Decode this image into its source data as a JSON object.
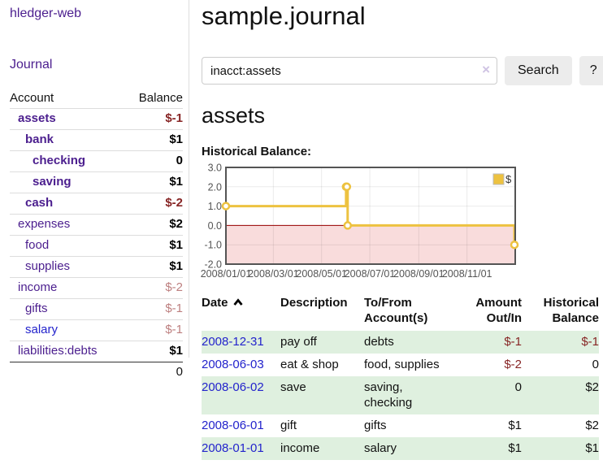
{
  "app": {
    "title": "hledger-web"
  },
  "sidebar": {
    "journal_link": "Journal",
    "accounts": {
      "headers": {
        "account": "Account",
        "balance": "Balance"
      },
      "rows": [
        {
          "name": "assets",
          "depth": 1,
          "balance": "$-1",
          "name_bold": true,
          "balance_bold": true,
          "balance_tone": "negative-strong",
          "link_tone": "purple"
        },
        {
          "name": "bank",
          "depth": 2,
          "balance": "$1",
          "name_bold": true,
          "balance_bold": true,
          "balance_tone": "normal",
          "link_tone": "purple"
        },
        {
          "name": "checking",
          "depth": 3,
          "balance": "0",
          "name_bold": true,
          "balance_bold": true,
          "balance_tone": "normal",
          "link_tone": "purple"
        },
        {
          "name": "saving",
          "depth": 3,
          "balance": "$1",
          "name_bold": true,
          "balance_bold": true,
          "balance_tone": "normal",
          "link_tone": "purple"
        },
        {
          "name": "cash",
          "depth": 2,
          "balance": "$-2",
          "name_bold": true,
          "balance_bold": true,
          "balance_tone": "negative-strong",
          "link_tone": "purple"
        },
        {
          "name": "expenses",
          "depth": 1,
          "balance": "$2",
          "name_bold": false,
          "balance_bold": true,
          "balance_tone": "normal",
          "link_tone": "purple"
        },
        {
          "name": "food",
          "depth": 2,
          "balance": "$1",
          "name_bold": false,
          "balance_bold": true,
          "balance_tone": "normal",
          "link_tone": "purple"
        },
        {
          "name": "supplies",
          "depth": 2,
          "balance": "$1",
          "name_bold": false,
          "balance_bold": true,
          "balance_tone": "normal",
          "link_tone": "purple"
        },
        {
          "name": "income",
          "depth": 1,
          "balance": "$-2",
          "name_bold": false,
          "balance_bold": false,
          "balance_tone": "negative-soft",
          "link_tone": "purple"
        },
        {
          "name": "gifts",
          "depth": 2,
          "balance": "$-1",
          "name_bold": false,
          "balance_bold": false,
          "balance_tone": "negative-soft",
          "link_tone": "purple"
        },
        {
          "name": "salary",
          "depth": 2,
          "balance": "$-1",
          "name_bold": false,
          "balance_bold": false,
          "balance_tone": "negative-soft",
          "link_tone": "blue"
        },
        {
          "name": "liabilities:debts",
          "depth": 1,
          "balance": "$1",
          "name_bold": false,
          "balance_bold": true,
          "balance_tone": "normal",
          "link_tone": "purple"
        }
      ],
      "total": "0"
    }
  },
  "main": {
    "title": "sample.journal",
    "search": {
      "value": "inacct:assets",
      "clear_icon": "×",
      "button_label": "Search",
      "help_label": "?"
    },
    "account_heading": "assets",
    "chart_heading": "Historical Balance:"
  },
  "register": {
    "headers": {
      "date": "Date",
      "sort_icon": "chevron-up",
      "description": "Description",
      "accounts": "To/From Account(s)",
      "amount": "Amount Out/In",
      "balance": "Historical Balance"
    },
    "rows": [
      {
        "date": "2008-12-31",
        "description": "pay off",
        "accounts": "debts",
        "amount": "$-1",
        "amount_negative": true,
        "balance": "$-1",
        "balance_negative": true,
        "shaded": true
      },
      {
        "date": "2008-06-03",
        "description": "eat & shop",
        "accounts": "food, supplies",
        "amount": "$-2",
        "amount_negative": true,
        "balance": "0",
        "balance_negative": false,
        "shaded": false
      },
      {
        "date": "2008-06-02",
        "description": "save",
        "accounts": "saving, checking",
        "amount": "0",
        "amount_negative": false,
        "balance": "$2",
        "balance_negative": false,
        "shaded": true
      },
      {
        "date": "2008-06-01",
        "description": "gift",
        "accounts": "gifts",
        "amount": "$1",
        "amount_negative": false,
        "balance": "$2",
        "balance_negative": false,
        "shaded": false
      },
      {
        "date": "2008-01-01",
        "description": "income",
        "accounts": "salary",
        "amount": "$1",
        "amount_negative": false,
        "balance": "$1",
        "balance_negative": false,
        "shaded": true
      }
    ]
  },
  "chart_data": {
    "type": "line",
    "title": "Historical Balance:",
    "legend": {
      "label": "$",
      "position": "top-right"
    },
    "series": [
      {
        "name": "$",
        "step": true,
        "points": [
          {
            "date": "2008-01-01",
            "day": 0,
            "value": 1
          },
          {
            "date": "2008-06-01",
            "day": 152,
            "value": 2
          },
          {
            "date": "2008-06-02",
            "day": 153,
            "value": 2
          },
          {
            "date": "2008-06-03",
            "day": 154,
            "value": 0
          },
          {
            "date": "2008-12-31",
            "day": 365,
            "value": -1
          }
        ]
      }
    ],
    "x_ticks": [
      {
        "label": "2008/01/01",
        "day": 0
      },
      {
        "label": "2008/03/01",
        "day": 60
      },
      {
        "label": "2008/05/01",
        "day": 121
      },
      {
        "label": "2008/07/01",
        "day": 182
      },
      {
        "label": "2008/09/01",
        "day": 244
      },
      {
        "label": "2008/11/01",
        "day": 305
      }
    ],
    "y_ticks": [
      "3.0",
      "2.0",
      "1.0",
      "0.0",
      "-1.0",
      "-2.0"
    ],
    "ylim": [
      -2,
      3
    ],
    "xlim_days": [
      0,
      366
    ],
    "grid": true
  },
  "colors": {
    "link-purple": "#4b1e8e",
    "link-blue": "#2323cc",
    "negative-strong": "#872525",
    "negative-soft": "#bd7f7f",
    "row-green": "#dff0df",
    "chart-gold": "#edc240",
    "chart-negative-bg": "#f9dcdc",
    "chart-zero-line": "#990000",
    "chart-border": "#545454",
    "axis-text": "#545454",
    "button-bg": "#ececec",
    "divider": "#dddddd",
    "input-border": "#cccccc",
    "clear-icon": "#cfc3e3"
  }
}
